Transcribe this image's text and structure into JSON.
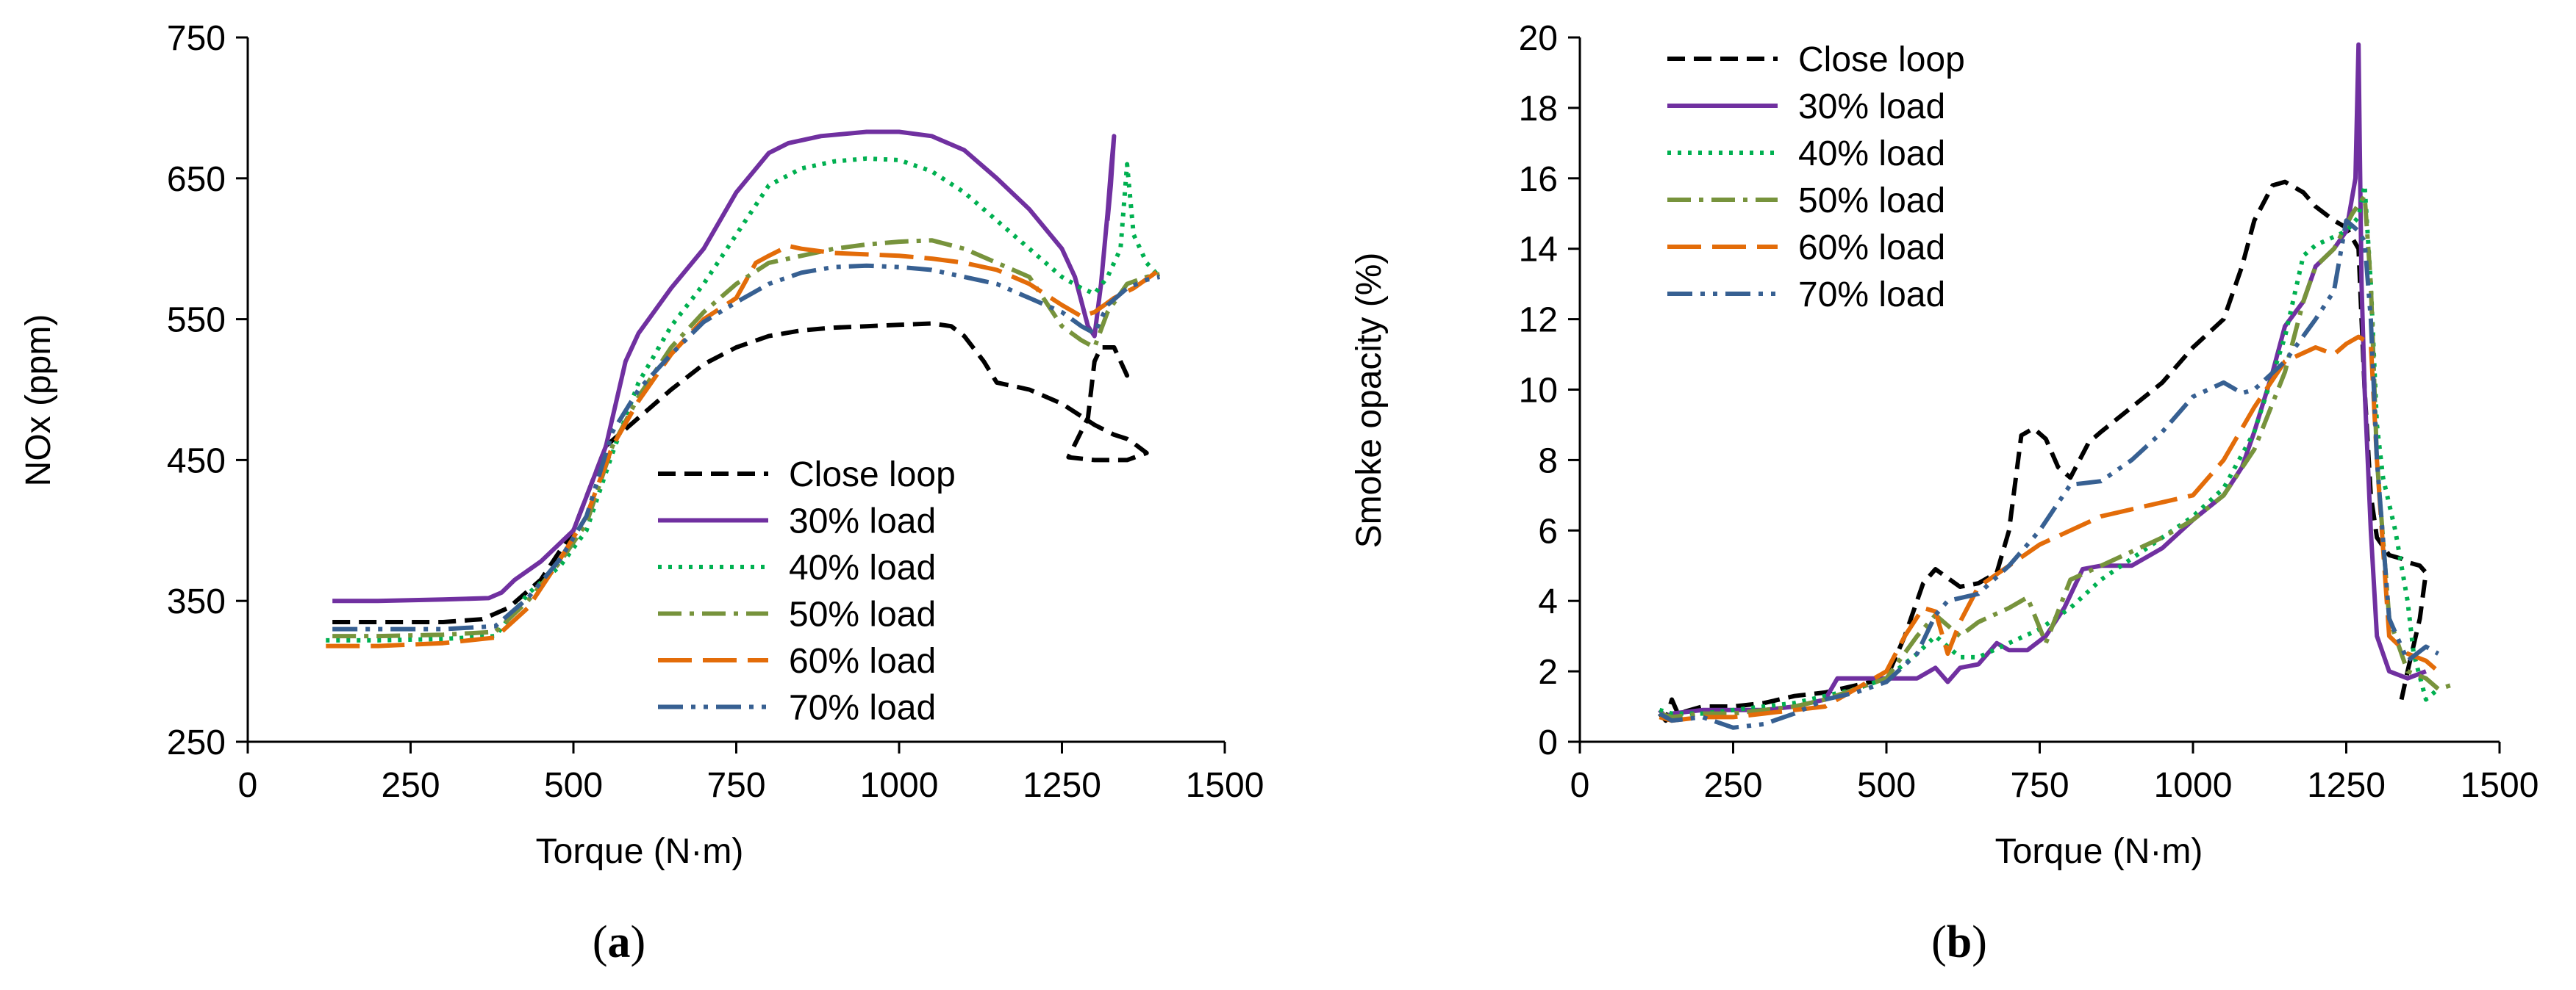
{
  "chart_data": [
    {
      "type": "line",
      "panel_label": "(a)",
      "panel_letter": "a",
      "xlabel": "Torque (N·m)",
      "ylabel": "NOx (ppm)",
      "xlim": [
        0,
        1500
      ],
      "ylim": [
        250,
        750
      ],
      "xticks": [
        0,
        250,
        500,
        750,
        1000,
        1250,
        1500
      ],
      "yticks": [
        250,
        350,
        450,
        550,
        650,
        750
      ],
      "legend_position": "lower-right",
      "series": [
        {
          "name": "Close loop",
          "color": "#000000",
          "dash": "dashed",
          "x": [
            130,
            200,
            300,
            360,
            400,
            450,
            500,
            550,
            600,
            650,
            700,
            750,
            800,
            850,
            900,
            950,
            1000,
            1050,
            1080,
            1100,
            1130,
            1150,
            1200,
            1250,
            1300,
            1330,
            1350,
            1360,
            1380,
            1350,
            1300,
            1260,
            1290,
            1300,
            1310,
            1330,
            1350,
            1340
          ],
          "y": [
            335,
            335,
            335,
            337,
            345,
            365,
            400,
            460,
            480,
            500,
            518,
            530,
            538,
            542,
            544,
            545,
            546,
            547,
            545,
            538,
            520,
            505,
            500,
            490,
            475,
            468,
            465,
            462,
            455,
            450,
            450,
            452,
            480,
            520,
            530,
            530,
            510,
            515
          ]
        },
        {
          "name": "30% load",
          "color": "#7030A0",
          "dash": "solid",
          "x": [
            130,
            200,
            300,
            370,
            390,
            410,
            450,
            500,
            550,
            580,
            600,
            650,
            700,
            750,
            800,
            830,
            880,
            950,
            1000,
            1050,
            1080,
            1100,
            1150,
            1200,
            1250,
            1270,
            1290,
            1300,
            1310,
            1320,
            1325,
            1330,
            1325,
            1320
          ],
          "y": [
            350,
            350,
            351,
            352,
            356,
            365,
            378,
            400,
            460,
            520,
            540,
            572,
            600,
            640,
            668,
            675,
            680,
            683,
            683,
            680,
            674,
            670,
            650,
            628,
            600,
            580,
            545,
            538,
            575,
            625,
            655,
            680,
            645,
            620
          ]
        },
        {
          "name": "40% load",
          "color": "#00B050",
          "dash": "dotted",
          "x": [
            120,
            200,
            300,
            380,
            430,
            480,
            520,
            560,
            600,
            650,
            700,
            750,
            800,
            850,
            900,
            950,
            1000,
            1050,
            1100,
            1150,
            1200,
            1250,
            1280,
            1300,
            1320,
            1340,
            1350,
            1360,
            1380,
            1400
          ],
          "y": [
            322,
            322,
            323,
            325,
            355,
            375,
            400,
            455,
            505,
            545,
            575,
            610,
            645,
            657,
            662,
            664,
            663,
            655,
            640,
            620,
            600,
            580,
            572,
            568,
            580,
            600,
            660,
            610,
            590,
            580
          ]
        },
        {
          "name": "50% load",
          "color": "#77933C",
          "dash": "dashdot",
          "x": [
            130,
            200,
            300,
            380,
            430,
            480,
            520,
            560,
            600,
            650,
            700,
            750,
            800,
            850,
            900,
            950,
            1000,
            1050,
            1100,
            1150,
            1200,
            1250,
            1280,
            1300,
            1320,
            1350,
            1380,
            1400
          ],
          "y": [
            325,
            325,
            326,
            328,
            350,
            378,
            405,
            460,
            495,
            530,
            555,
            575,
            590,
            595,
            600,
            603,
            605,
            606,
            600,
            590,
            580,
            545,
            535,
            530,
            555,
            575,
            580,
            582
          ]
        },
        {
          "name": "60% load",
          "color": "#E36C09",
          "dash": "longdash",
          "x": [
            120,
            200,
            300,
            380,
            430,
            480,
            520,
            560,
            600,
            650,
            700,
            750,
            780,
            800,
            830,
            850,
            900,
            950,
            1000,
            1050,
            1100,
            1150,
            1200,
            1250,
            1280,
            1300,
            1330,
            1360,
            1400
          ],
          "y": [
            318,
            318,
            320,
            324,
            345,
            380,
            410,
            460,
            492,
            525,
            550,
            565,
            590,
            595,
            602,
            600,
            597,
            596,
            595,
            593,
            590,
            585,
            575,
            560,
            552,
            555,
            565,
            572,
            585
          ]
        },
        {
          "name": "70% load",
          "color": "#376092",
          "dash": "dashdotdot",
          "x": [
            130,
            200,
            300,
            380,
            430,
            480,
            520,
            560,
            600,
            650,
            700,
            750,
            800,
            850,
            900,
            950,
            1000,
            1050,
            1100,
            1150,
            1200,
            1250,
            1280,
            1300,
            1320,
            1350,
            1380,
            1400
          ],
          "y": [
            330,
            330,
            330,
            332,
            352,
            380,
            410,
            470,
            500,
            525,
            548,
            562,
            575,
            583,
            587,
            588,
            587,
            585,
            580,
            575,
            565,
            555,
            545,
            540,
            560,
            572,
            578,
            580
          ]
        }
      ]
    },
    {
      "type": "line",
      "panel_label": "(b)",
      "panel_letter": "b",
      "xlabel": "Torque (N·m)",
      "ylabel": "Smoke opacity (%)",
      "xlim": [
        0,
        1500
      ],
      "ylim": [
        0,
        20
      ],
      "xticks": [
        0,
        250,
        500,
        750,
        1000,
        1250,
        1500
      ],
      "yticks": [
        0,
        2,
        4,
        6,
        8,
        10,
        12,
        14,
        16,
        18,
        20
      ],
      "legend_position": "top-left",
      "series": [
        {
          "name": "Close loop",
          "color": "#000000",
          "dash": "dashed",
          "x": [
            130,
            140,
            150,
            160,
            200,
            250,
            300,
            350,
            400,
            450,
            500,
            530,
            560,
            580,
            620,
            650,
            680,
            700,
            720,
            740,
            760,
            780,
            800,
            830,
            850,
            900,
            950,
            1000,
            1050,
            1080,
            1100,
            1130,
            1150,
            1180,
            1200,
            1230,
            1250,
            1270,
            1275,
            1280,
            1290,
            1300,
            1320,
            1340,
            1350,
            1370,
            1380,
            1370,
            1350,
            1340
          ],
          "y": [
            0.8,
            0.6,
            1.2,
            0.8,
            1.0,
            1.0,
            1.1,
            1.3,
            1.4,
            1.6,
            1.8,
            3.0,
            4.5,
            4.9,
            4.4,
            4.5,
            4.8,
            6.0,
            8.7,
            8.9,
            8.6,
            7.8,
            7.5,
            8.5,
            8.8,
            9.5,
            10.2,
            11.2,
            12.0,
            13.5,
            14.8,
            15.8,
            15.9,
            15.6,
            15.2,
            14.8,
            14.6,
            14.0,
            12.0,
            10.0,
            7.0,
            5.8,
            5.3,
            5.2,
            5.1,
            5.0,
            4.8,
            3.5,
            2.0,
            1.2
          ]
        },
        {
          "name": "30% load",
          "color": "#7030A0",
          "dash": "solid",
          "x": [
            130,
            140,
            150,
            200,
            250,
            300,
            350,
            400,
            420,
            450,
            500,
            550,
            580,
            600,
            620,
            650,
            680,
            700,
            730,
            760,
            790,
            820,
            850,
            900,
            950,
            1000,
            1050,
            1080,
            1100,
            1130,
            1150,
            1180,
            1200,
            1230,
            1250,
            1265,
            1270,
            1272,
            1275,
            1280,
            1290,
            1300,
            1320,
            1350,
            1380
          ],
          "y": [
            0.9,
            0.7,
            0.8,
            0.9,
            0.9,
            0.9,
            1.0,
            1.2,
            1.8,
            1.8,
            1.8,
            1.8,
            2.1,
            1.7,
            2.1,
            2.2,
            2.8,
            2.6,
            2.6,
            3.0,
            3.8,
            4.9,
            5.0,
            5.0,
            5.5,
            6.3,
            7.0,
            7.8,
            8.8,
            10.5,
            11.8,
            12.5,
            13.5,
            14.0,
            14.5,
            16.0,
            19.8,
            17.0,
            13.0,
            10.0,
            6.0,
            3.0,
            2.0,
            1.8,
            2.0
          ]
        },
        {
          "name": "40% load",
          "color": "#00B050",
          "dash": "dotted",
          "x": [
            130,
            150,
            200,
            250,
            300,
            350,
            400,
            450,
            500,
            550,
            580,
            620,
            650,
            700,
            750,
            800,
            850,
            900,
            950,
            1000,
            1050,
            1100,
            1150,
            1180,
            1200,
            1250,
            1270,
            1280,
            1290,
            1300,
            1310,
            1330,
            1350,
            1360,
            1380,
            1400
          ],
          "y": [
            0.9,
            0.8,
            0.8,
            0.9,
            1.0,
            1.1,
            1.3,
            1.5,
            1.8,
            2.5,
            3.0,
            2.4,
            2.4,
            2.8,
            3.2,
            3.8,
            4.6,
            5.2,
            5.8,
            6.4,
            7.2,
            8.8,
            11.5,
            13.8,
            14.1,
            14.5,
            14.9,
            15.8,
            13.0,
            9.0,
            7.5,
            6.0,
            4.0,
            2.5,
            1.2,
            1.5
          ]
        },
        {
          "name": "50% load",
          "color": "#77933C",
          "dash": "dashdot",
          "x": [
            130,
            150,
            200,
            250,
            300,
            350,
            400,
            450,
            500,
            550,
            580,
            620,
            650,
            700,
            730,
            760,
            800,
            850,
            900,
            950,
            1000,
            1050,
            1100,
            1150,
            1180,
            1200,
            1230,
            1260,
            1280,
            1290,
            1300,
            1320,
            1350,
            1380,
            1400,
            1420
          ],
          "y": [
            0.8,
            0.7,
            0.8,
            0.8,
            0.9,
            1.0,
            1.2,
            1.5,
            1.8,
            3.0,
            3.6,
            3.0,
            3.4,
            3.8,
            4.1,
            2.8,
            4.6,
            5.0,
            5.4,
            5.8,
            6.3,
            7.0,
            8.3,
            10.5,
            12.5,
            13.5,
            14.0,
            15.0,
            15.5,
            13.0,
            8.0,
            3.5,
            2.0,
            1.8,
            1.5,
            1.6
          ]
        },
        {
          "name": "60% load",
          "color": "#E36C09",
          "dash": "longdash",
          "x": [
            130,
            150,
            200,
            250,
            300,
            350,
            400,
            450,
            500,
            530,
            560,
            580,
            600,
            620,
            650,
            700,
            750,
            800,
            850,
            900,
            950,
            1000,
            1050,
            1100,
            1150,
            1200,
            1230,
            1250,
            1270,
            1290,
            1300,
            1320,
            1350,
            1380,
            1400
          ],
          "y": [
            0.7,
            0.6,
            0.7,
            0.7,
            0.8,
            0.9,
            1.0,
            1.5,
            2.0,
            3.0,
            3.8,
            3.7,
            2.5,
            3.4,
            4.4,
            5.0,
            5.6,
            6.0,
            6.4,
            6.6,
            6.8,
            7.0,
            8.0,
            9.5,
            10.8,
            11.2,
            11.0,
            11.3,
            11.5,
            11.3,
            8.0,
            3.0,
            2.5,
            2.3,
            2.0
          ]
        },
        {
          "name": "70% load",
          "color": "#376092",
          "dash": "dashdotdot",
          "x": [
            130,
            150,
            200,
            250,
            300,
            350,
            400,
            450,
            500,
            550,
            580,
            600,
            650,
            700,
            750,
            800,
            850,
            900,
            950,
            1000,
            1050,
            1080,
            1100,
            1150,
            1200,
            1230,
            1250,
            1270,
            1280,
            1290,
            1300,
            1320,
            1350,
            1380,
            1400
          ],
          "y": [
            0.8,
            0.6,
            0.7,
            0.4,
            0.5,
            0.8,
            1.2,
            1.4,
            1.7,
            2.5,
            3.6,
            4.0,
            4.2,
            5.0,
            6.0,
            7.3,
            7.4,
            8.0,
            8.8,
            9.8,
            10.2,
            9.9,
            10.0,
            10.8,
            12.0,
            12.8,
            14.8,
            14.5,
            14.2,
            12.0,
            8.0,
            3.5,
            2.3,
            2.7,
            2.5
          ]
        }
      ]
    }
  ]
}
